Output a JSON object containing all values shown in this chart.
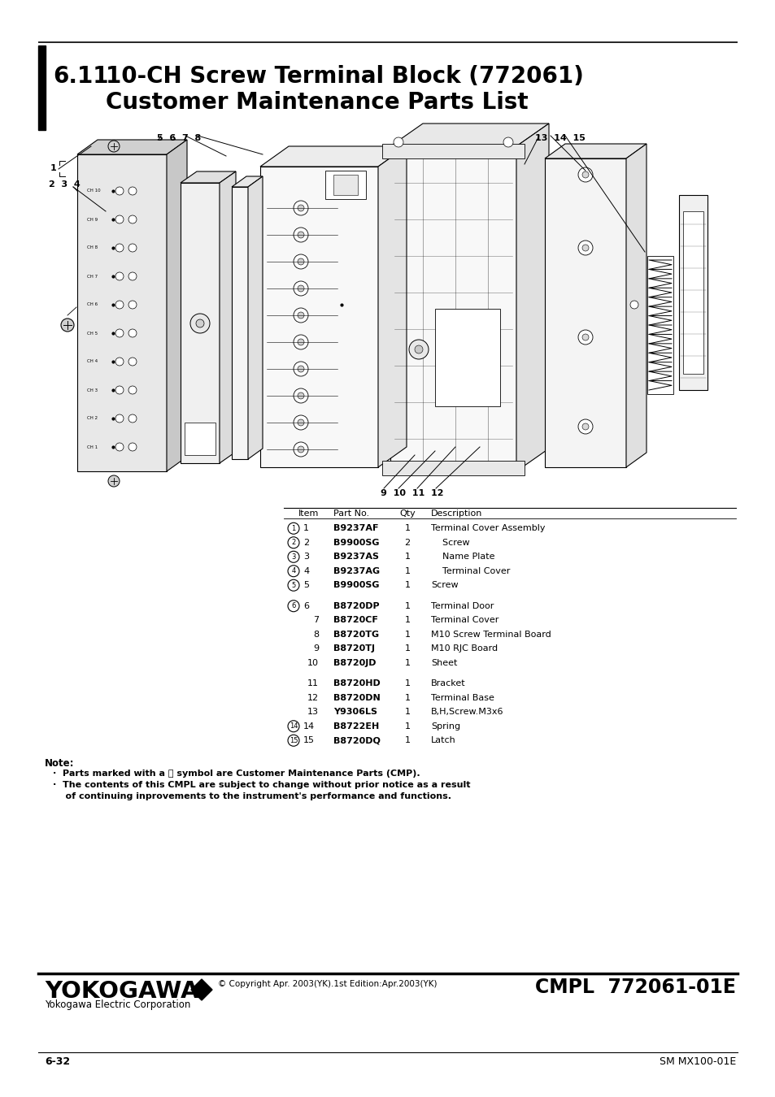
{
  "title_section": "6.11",
  "title_main": "10-CH Screw Terminal Block (772061)",
  "title_sub": "Customer Maintenance Parts List",
  "page_number": "6-32",
  "doc_number": "SM MX100-01E",
  "cmpl_number": "CMPL  772061-01E",
  "copyright": "© Copyright Apr. 2003(YK).1st Edition:Apr.2003(YK)",
  "company": "YOKOGAWA",
  "company_sub": "Yokogawa Electric Corporation",
  "table_headers": [
    "Item",
    "Part No.",
    "Qty",
    "Description"
  ],
  "table_rows": [
    {
      "circle": true,
      "item": "1",
      "part": "B9237AF",
      "qty": "1",
      "desc": "Terminal Cover Assembly"
    },
    {
      "circle": true,
      "item": "2",
      "part": "B9900SG",
      "qty": "2",
      "desc": "    Screw"
    },
    {
      "circle": true,
      "item": "3",
      "part": "B9237AS",
      "qty": "1",
      "desc": "    Name Plate"
    },
    {
      "circle": true,
      "item": "4",
      "part": "B9237AG",
      "qty": "1",
      "desc": "    Terminal Cover"
    },
    {
      "circle": true,
      "item": "5",
      "part": "B9900SG",
      "qty": "1",
      "desc": "Screw"
    },
    {
      "circle": true,
      "item": "6",
      "part": "B8720DP",
      "qty": "1",
      "desc": "Terminal Door"
    },
    {
      "circle": false,
      "item": "7",
      "part": "B8720CF",
      "qty": "1",
      "desc": "Terminal Cover"
    },
    {
      "circle": false,
      "item": "8",
      "part": "B8720TG",
      "qty": "1",
      "desc": "M10 Screw Terminal Board"
    },
    {
      "circle": false,
      "item": "9",
      "part": "B8720TJ",
      "qty": "1",
      "desc": "M10 RJC Board"
    },
    {
      "circle": false,
      "item": "10",
      "part": "B8720JD",
      "qty": "1",
      "desc": "Sheet"
    },
    {
      "circle": false,
      "item": "11",
      "part": "B8720HD",
      "qty": "1",
      "desc": "Bracket"
    },
    {
      "circle": false,
      "item": "12",
      "part": "B8720DN",
      "qty": "1",
      "desc": "Terminal Base"
    },
    {
      "circle": false,
      "item": "13",
      "part": "Y9306LS",
      "qty": "1",
      "desc": "B,H,Screw.M3x6"
    },
    {
      "circle": true,
      "item": "14",
      "part": "B8722EH",
      "qty": "1",
      "desc": "Spring"
    },
    {
      "circle": true,
      "item": "15",
      "part": "B8720DQ",
      "qty": "1",
      "desc": "Latch"
    }
  ],
  "note_title": "Note:",
  "note_lines": [
    "·  Parts marked with a ⓞ symbol are Customer Maintenance Parts (CMP).",
    "·  The contents of this CMPL are subject to change without prior notice as a result",
    "    of continuing inprovements to the instrument's performance and functions."
  ],
  "bg_color": "#ffffff",
  "text_color": "#000000"
}
